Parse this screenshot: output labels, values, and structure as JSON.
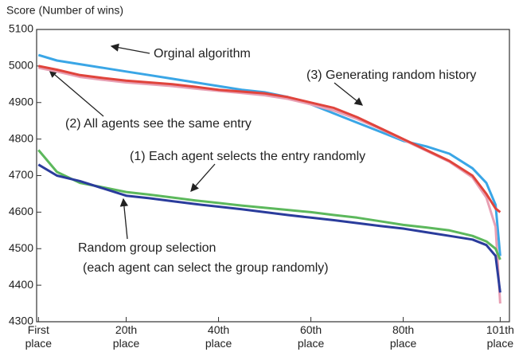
{
  "chart_data": {
    "type": "line",
    "ylabel": "Score (Number of wins)",
    "x": [
      1,
      5,
      10,
      15,
      20,
      25,
      30,
      35,
      40,
      45,
      50,
      55,
      60,
      65,
      70,
      75,
      80,
      85,
      90,
      95,
      98,
      100,
      101
    ],
    "xlim": [
      0.6,
      103
    ],
    "xticks": [
      {
        "value": 1,
        "label": "First place"
      },
      {
        "value": 20,
        "label": "20th place"
      },
      {
        "value": 40,
        "label": "40th place"
      },
      {
        "value": 60,
        "label": "60th place"
      },
      {
        "value": 80,
        "label": "80th place"
      },
      {
        "value": 101,
        "label": "101th place"
      }
    ],
    "ylim": [
      4300,
      5100
    ],
    "yticks": [
      4300,
      4400,
      4500,
      4600,
      4700,
      4800,
      4900,
      5000,
      5100
    ],
    "series": [
      {
        "color": "#3aa6e6",
        "values": [
          5030,
          5015,
          5005,
          4995,
          4985,
          4975,
          4965,
          4955,
          4945,
          4935,
          4928,
          4915,
          4895,
          4870,
          4845,
          4820,
          4795,
          4780,
          4760,
          4720,
          4680,
          4620,
          4480
        ]
      },
      {
        "color": "#e8a0b4",
        "values": [
          4995,
          4985,
          4970,
          4962,
          4955,
          4950,
          4945,
          4938,
          4932,
          4926,
          4920,
          4910,
          4895,
          4878,
          4855,
          4828,
          4798,
          4768,
          4738,
          4695,
          4640,
          4560,
          4350
        ]
      },
      {
        "color": "#e0443c",
        "values": [
          5000,
          4990,
          4975,
          4967,
          4960,
          4955,
          4950,
          4943,
          4935,
          4930,
          4925,
          4915,
          4900,
          4885,
          4860,
          4830,
          4800,
          4770,
          4740,
          4700,
          4650,
          4610,
          4600
        ]
      },
      {
        "color": "#5cb85c",
        "values": [
          4770,
          4710,
          4680,
          4668,
          4655,
          4648,
          4640,
          4632,
          4625,
          4618,
          4612,
          4606,
          4600,
          4592,
          4585,
          4575,
          4565,
          4558,
          4550,
          4535,
          4520,
          4500,
          4470
        ]
      },
      {
        "color": "#2a3c9c",
        "values": [
          4730,
          4700,
          4685,
          4665,
          4645,
          4638,
          4630,
          4622,
          4615,
          4608,
          4600,
          4592,
          4585,
          4578,
          4570,
          4562,
          4555,
          4545,
          4535,
          4525,
          4510,
          4480,
          4380
        ]
      }
    ],
    "annotations": [
      "Orginal algorithm",
      "(3) Generating random history",
      "(2) All agents see the same entry",
      "(1) Each agent selects the entry randomly",
      "Random group selection",
      "(each agent can select the group randomly)"
    ]
  }
}
